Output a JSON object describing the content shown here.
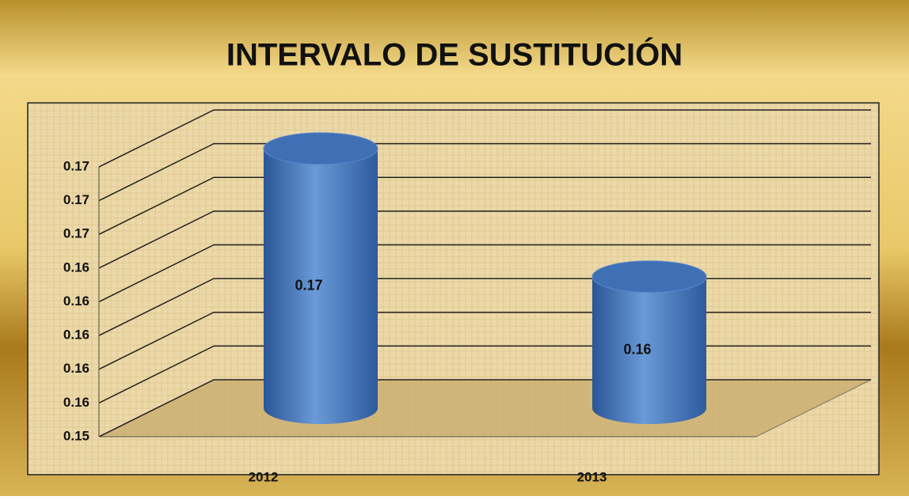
{
  "chart_data": {
    "type": "bar3d",
    "title": "INTERVALO DE SUSTITUCIÓN",
    "categories": [
      "2012",
      "2013"
    ],
    "values": [
      0.1694,
      0.1618
    ],
    "value_labels": [
      "0.17",
      "0.16"
    ],
    "color": "#3f6fb5",
    "ylim": [
      0.154,
      0.17
    ],
    "yticks": [
      {
        "value": 0.154,
        "label": "0.15"
      },
      {
        "value": 0.156,
        "label": "0.16"
      },
      {
        "value": 0.158,
        "label": "0.16"
      },
      {
        "value": 0.16,
        "label": "0.16"
      },
      {
        "value": 0.162,
        "label": "0.16"
      },
      {
        "value": 0.164,
        "label": "0.16"
      },
      {
        "value": 0.166,
        "label": "0.17"
      },
      {
        "value": 0.168,
        "label": "0.17"
      },
      {
        "value": 0.17,
        "label": "0.17"
      }
    ],
    "grid": true
  }
}
